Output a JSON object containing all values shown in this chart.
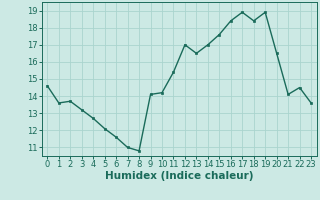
{
  "xlabel": "Humidex (Indice chaleur)",
  "x": [
    0,
    1,
    2,
    3,
    4,
    5,
    6,
    7,
    8,
    9,
    10,
    11,
    12,
    13,
    14,
    15,
    16,
    17,
    18,
    19,
    20,
    21,
    22,
    23
  ],
  "y": [
    14.6,
    13.6,
    13.7,
    13.2,
    12.7,
    12.1,
    11.6,
    11.0,
    10.8,
    14.1,
    14.2,
    15.4,
    17.0,
    16.5,
    17.0,
    17.6,
    18.4,
    18.9,
    18.4,
    18.9,
    16.5,
    14.1,
    14.5,
    13.6
  ],
  "line_color": "#1a6b5a",
  "marker_color": "#1a6b5a",
  "bg_color": "#cce9e4",
  "grid_color": "#aad4ce",
  "tick_label_color": "#1a6b5a",
  "label_color": "#1a6b5a",
  "ylim": [
    10.5,
    19.5
  ],
  "yticks": [
    11,
    12,
    13,
    14,
    15,
    16,
    17,
    18,
    19
  ],
  "xlim": [
    -0.5,
    23.5
  ],
  "xlabel_fontsize": 7.5,
  "tick_fontsize": 6.0,
  "line_width": 1.0,
  "marker_size": 2.0
}
